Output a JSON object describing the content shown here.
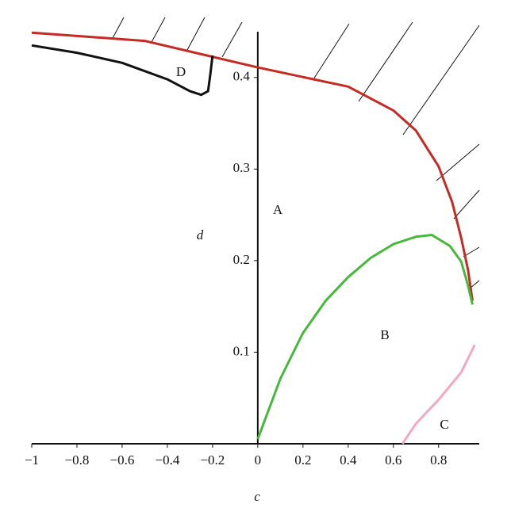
{
  "chart_data": {
    "type": "line",
    "x_label": "c",
    "y_label": "d",
    "xlim": [
      -1,
      0.98
    ],
    "ylim": [
      0,
      0.45
    ],
    "xticks": [
      {
        "value": -1,
        "label": "−1"
      },
      {
        "value": -0.8,
        "label": "−0.8"
      },
      {
        "value": -0.6,
        "label": "−0.6"
      },
      {
        "value": -0.4,
        "label": "−0.4"
      },
      {
        "value": -0.2,
        "label": "−0.2"
      },
      0,
      0.2,
      0.4,
      0.6,
      0.8
    ],
    "yticks": [
      0.1,
      0.2,
      0.3,
      0.4
    ],
    "annotations": [
      "A",
      "B",
      "C",
      "D"
    ],
    "series": [
      {
        "color": "#c62a22",
        "x": [
          -1,
          -0.5,
          0,
          0.4,
          0.6,
          0.7,
          0.8,
          0.86,
          0.9,
          0.93,
          0.95
        ],
        "values": [
          0.449,
          0.44,
          0.411,
          0.39,
          0.364,
          0.342,
          0.303,
          0.264,
          0.225,
          0.19,
          0.156
        ]
      },
      {
        "color": "#46b83a",
        "x": [
          0,
          0.1,
          0.2,
          0.3,
          0.4,
          0.5,
          0.6,
          0.7,
          0.77,
          0.85,
          0.9,
          0.93,
          0.95
        ],
        "values": [
          0.005,
          0.071,
          0.121,
          0.156,
          0.182,
          0.203,
          0.218,
          0.226,
          0.228,
          0.216,
          0.199,
          0.173,
          0.152
        ]
      },
      {
        "color": "#f2a9c0",
        "x": [
          0.64,
          0.7,
          0.8,
          0.9,
          0.96
        ],
        "values": [
          0,
          0.022,
          0.048,
          0.078,
          0.108
        ]
      },
      {
        "color": "#111111",
        "x": [
          -1,
          -0.8,
          -0.6,
          -0.4,
          -0.3,
          -0.25,
          -0.22,
          -0.21,
          -0.2
        ],
        "values": [
          0.435,
          0.427,
          0.416,
          0.398,
          0.385,
          0.381,
          0.385,
          0.403,
          0.424
        ]
      }
    ]
  }
}
